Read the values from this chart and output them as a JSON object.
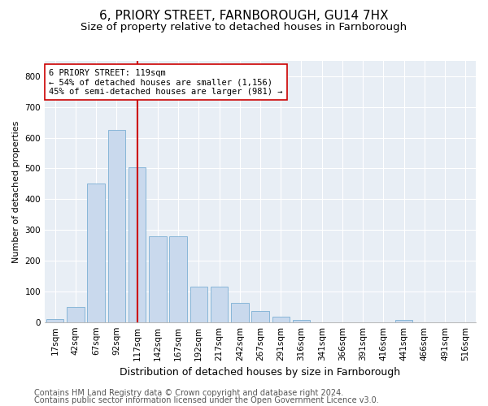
{
  "title1": "6, PRIORY STREET, FARNBOROUGH, GU14 7HX",
  "title2": "Size of property relative to detached houses in Farnborough",
  "xlabel": "Distribution of detached houses by size in Farnborough",
  "ylabel": "Number of detached properties",
  "bar_labels": [
    "17sqm",
    "42sqm",
    "67sqm",
    "92sqm",
    "117sqm",
    "142sqm",
    "167sqm",
    "192sqm",
    "217sqm",
    "242sqm",
    "267sqm",
    "291sqm",
    "316sqm",
    "341sqm",
    "366sqm",
    "391sqm",
    "416sqm",
    "441sqm",
    "466sqm",
    "491sqm",
    "516sqm"
  ],
  "bar_values": [
    10,
    50,
    450,
    625,
    505,
    280,
    280,
    115,
    115,
    62,
    35,
    18,
    8,
    0,
    0,
    0,
    0,
    6,
    0,
    0,
    0
  ],
  "bar_color": "#c9d9ed",
  "bar_edgecolor": "#7bafd4",
  "vline_x": 4,
  "vline_color": "#cc0000",
  "annotation_text": "6 PRIORY STREET: 119sqm\n← 54% of detached houses are smaller (1,156)\n45% of semi-detached houses are larger (981) →",
  "annotation_box_edgecolor": "#cc0000",
  "ylim": [
    0,
    850
  ],
  "yticks": [
    0,
    100,
    200,
    300,
    400,
    500,
    600,
    700,
    800
  ],
  "background_color": "#e8eef5",
  "footer1": "Contains HM Land Registry data © Crown copyright and database right 2024.",
  "footer2": "Contains public sector information licensed under the Open Government Licence v3.0.",
  "title1_fontsize": 11,
  "title2_fontsize": 9.5,
  "xlabel_fontsize": 9,
  "ylabel_fontsize": 8,
  "tick_fontsize": 7.5,
  "footer_fontsize": 7,
  "ann_fontsize": 7.5
}
